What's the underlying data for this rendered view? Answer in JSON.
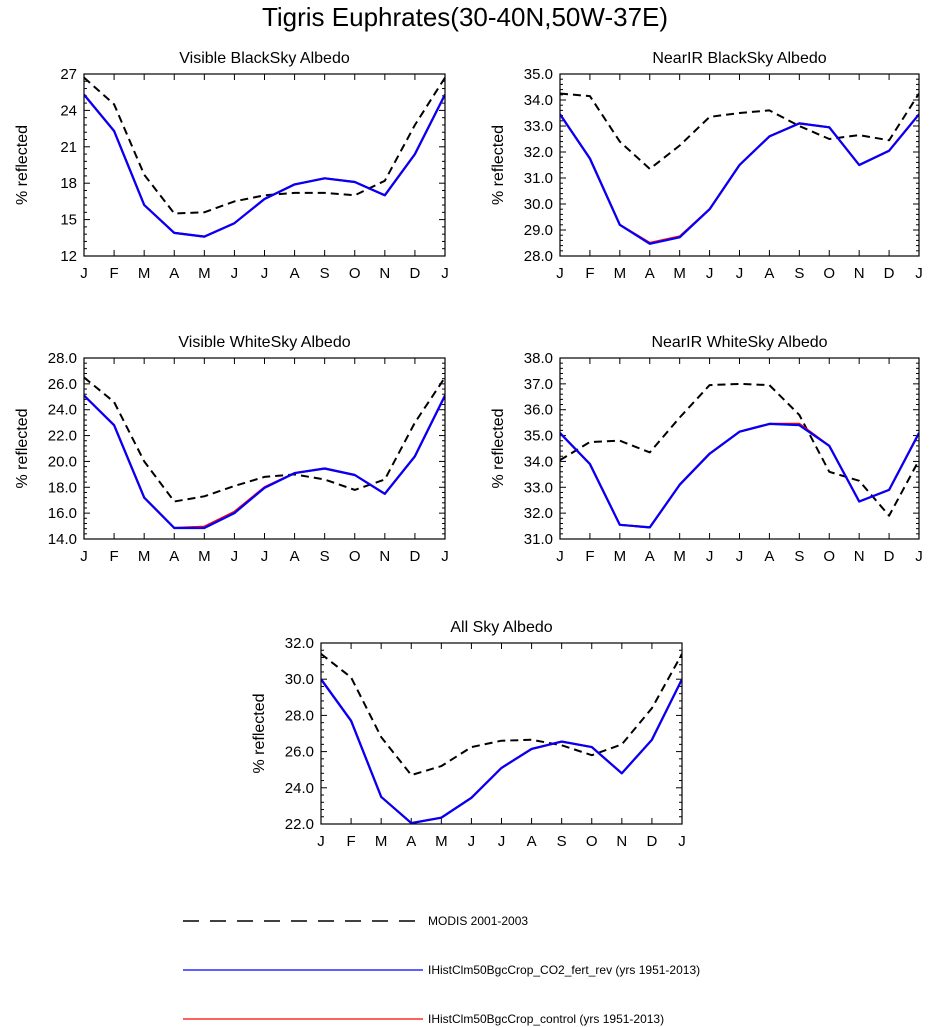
{
  "figure_title": "Tigris Euphrates(30-40N,50W-37E)",
  "legend": [
    {
      "label": "MODIS 2001-2003",
      "color": "#000000",
      "dash": true
    },
    {
      "label": "IHistClm50BgcCrop_CO2_fert_rev (yrs 1951-2013)",
      "color": "#0000ff",
      "dash": false
    },
    {
      "label": "IHistClm50BgcCrop_control (yrs 1951-2013)",
      "color": "#ff0000",
      "dash": false
    }
  ],
  "chart_data": [
    {
      "type": "line",
      "title": "Visible BlackSky Albedo",
      "ylabel": "% reflected",
      "categories": [
        "J",
        "F",
        "M",
        "A",
        "M",
        "J",
        "J",
        "A",
        "S",
        "O",
        "N",
        "D",
        "J"
      ],
      "ylim": [
        12,
        27
      ],
      "yticks": [
        "12",
        "15",
        "18",
        "21",
        "24",
        "27"
      ],
      "grid": false,
      "series": [
        {
          "name": "MODIS 2001-2003",
          "color": "#000000",
          "dash": true,
          "values": [
            26.7,
            24.5,
            18.7,
            15.5,
            15.6,
            16.5,
            17.0,
            17.2,
            17.2,
            17.0,
            18.2,
            22.8,
            26.7
          ]
        },
        {
          "name": "IHistClm50BgcCrop_control (yrs 1951-2013)",
          "color": "#ff0000",
          "dash": false,
          "values": [
            25.3,
            22.3,
            16.2,
            13.9,
            13.6,
            14.7,
            16.7,
            17.9,
            18.4,
            18.1,
            17.0,
            20.4,
            25.3
          ]
        },
        {
          "name": "IHistClm50BgcCrop_CO2_fert_rev (yrs 1951-2013)",
          "color": "#0000ff",
          "dash": false,
          "values": [
            25.3,
            22.3,
            16.2,
            13.9,
            13.6,
            14.7,
            16.7,
            17.9,
            18.4,
            18.1,
            17.0,
            20.4,
            25.3
          ]
        }
      ]
    },
    {
      "type": "line",
      "title": "NearIR BlackSky Albedo",
      "ylabel": "% reflected",
      "categories": [
        "J",
        "F",
        "M",
        "A",
        "M",
        "J",
        "J",
        "A",
        "S",
        "O",
        "N",
        "D",
        "J"
      ],
      "ylim": [
        28,
        35
      ],
      "yticks": [
        "28.0",
        "29.0",
        "30.0",
        "31.0",
        "32.0",
        "33.0",
        "34.0",
        "35.0"
      ],
      "grid": false,
      "series": [
        {
          "name": "MODIS 2001-2003",
          "color": "#000000",
          "dash": true,
          "values": [
            34.25,
            34.15,
            32.4,
            31.35,
            32.25,
            33.35,
            33.5,
            33.6,
            33.0,
            32.5,
            32.65,
            32.45,
            34.25
          ]
        },
        {
          "name": "IHistClm50BgcCrop_control (yrs 1951-2013)",
          "color": "#ff0000",
          "dash": false,
          "values": [
            33.45,
            31.75,
            29.2,
            28.5,
            28.75,
            29.8,
            31.5,
            32.6,
            33.1,
            32.95,
            31.5,
            32.05,
            33.45
          ]
        },
        {
          "name": "IHistClm50BgcCrop_CO2_fert_rev (yrs 1951-2013)",
          "color": "#0000ff",
          "dash": false,
          "values": [
            33.45,
            31.75,
            29.2,
            28.47,
            28.72,
            29.8,
            31.5,
            32.6,
            33.1,
            32.95,
            31.5,
            32.05,
            33.45
          ]
        }
      ]
    },
    {
      "type": "line",
      "title": "Visible WhiteSky Albedo",
      "ylabel": "% reflected",
      "categories": [
        "J",
        "F",
        "M",
        "A",
        "M",
        "J",
        "J",
        "A",
        "S",
        "O",
        "N",
        "D",
        "J"
      ],
      "ylim": [
        14,
        28
      ],
      "yticks": [
        "14.0",
        "16.0",
        "18.0",
        "20.0",
        "22.0",
        "24.0",
        "26.0",
        "28.0"
      ],
      "grid": false,
      "series": [
        {
          "name": "MODIS 2001-2003",
          "color": "#000000",
          "dash": true,
          "values": [
            26.5,
            24.6,
            20.0,
            16.9,
            17.3,
            18.1,
            18.8,
            19.0,
            18.6,
            17.8,
            18.6,
            23.0,
            26.5
          ]
        },
        {
          "name": "IHistClm50BgcCrop_control (yrs 1951-2013)",
          "color": "#ff0000",
          "dash": false,
          "values": [
            25.1,
            22.8,
            17.2,
            14.85,
            14.95,
            16.1,
            18.0,
            19.1,
            19.45,
            18.95,
            17.5,
            20.4,
            25.1
          ]
        },
        {
          "name": "IHistClm50BgcCrop_CO2_fert_rev (yrs 1951-2013)",
          "color": "#0000ff",
          "dash": false,
          "values": [
            25.1,
            22.8,
            17.2,
            14.85,
            14.85,
            16.0,
            17.95,
            19.1,
            19.45,
            18.95,
            17.5,
            20.4,
            25.1
          ]
        }
      ]
    },
    {
      "type": "line",
      "title": "NearIR WhiteSky Albedo",
      "ylabel": "% reflected",
      "categories": [
        "J",
        "F",
        "M",
        "A",
        "M",
        "J",
        "J",
        "A",
        "S",
        "O",
        "N",
        "D",
        "J"
      ],
      "ylim": [
        31,
        38
      ],
      "yticks": [
        "31.0",
        "32.0",
        "33.0",
        "34.0",
        "35.0",
        "36.0",
        "37.0",
        "38.0"
      ],
      "grid": false,
      "series": [
        {
          "name": "MODIS 2001-2003",
          "color": "#000000",
          "dash": true,
          "values": [
            34.05,
            34.75,
            34.8,
            34.35,
            35.7,
            36.95,
            37.0,
            36.95,
            35.8,
            33.6,
            33.25,
            31.9,
            34.05
          ]
        },
        {
          "name": "IHistClm50BgcCrop_control (yrs 1951-2013)",
          "color": "#ff0000",
          "dash": false,
          "values": [
            35.1,
            33.9,
            31.55,
            31.45,
            33.1,
            34.3,
            35.15,
            35.45,
            35.45,
            34.6,
            32.45,
            32.9,
            35.1
          ]
        },
        {
          "name": "IHistClm50BgcCrop_CO2_fert_rev (yrs 1951-2013)",
          "color": "#0000ff",
          "dash": false,
          "values": [
            35.1,
            33.9,
            31.55,
            31.45,
            33.1,
            34.3,
            35.15,
            35.45,
            35.4,
            34.6,
            32.45,
            32.9,
            35.1
          ]
        }
      ]
    },
    {
      "type": "line",
      "title": "All Sky Albedo",
      "ylabel": "% reflected",
      "categories": [
        "J",
        "F",
        "M",
        "A",
        "M",
        "J",
        "J",
        "A",
        "S",
        "O",
        "N",
        "D",
        "J"
      ],
      "ylim": [
        22,
        32
      ],
      "yticks": [
        "22.0",
        "24.0",
        "26.0",
        "28.0",
        "30.0",
        "32.0"
      ],
      "grid": false,
      "series": [
        {
          "name": "MODIS 2001-2003",
          "color": "#000000",
          "dash": true,
          "values": [
            31.4,
            30.1,
            26.8,
            24.7,
            25.2,
            26.25,
            26.6,
            26.65,
            26.35,
            25.8,
            26.4,
            28.4,
            31.4
          ]
        },
        {
          "name": "IHistClm50BgcCrop_control (yrs 1951-2013)",
          "color": "#ff0000",
          "dash": false,
          "values": [
            30.0,
            27.7,
            23.5,
            22.05,
            22.35,
            23.45,
            25.1,
            26.15,
            26.55,
            26.25,
            24.8,
            26.65,
            30.0
          ]
        },
        {
          "name": "IHistClm50BgcCrop_CO2_fert_rev (yrs 1951-2013)",
          "color": "#0000ff",
          "dash": false,
          "values": [
            30.0,
            27.7,
            23.5,
            22.05,
            22.35,
            23.45,
            25.1,
            26.15,
            26.55,
            26.25,
            24.8,
            26.65,
            30.0
          ]
        }
      ]
    }
  ]
}
